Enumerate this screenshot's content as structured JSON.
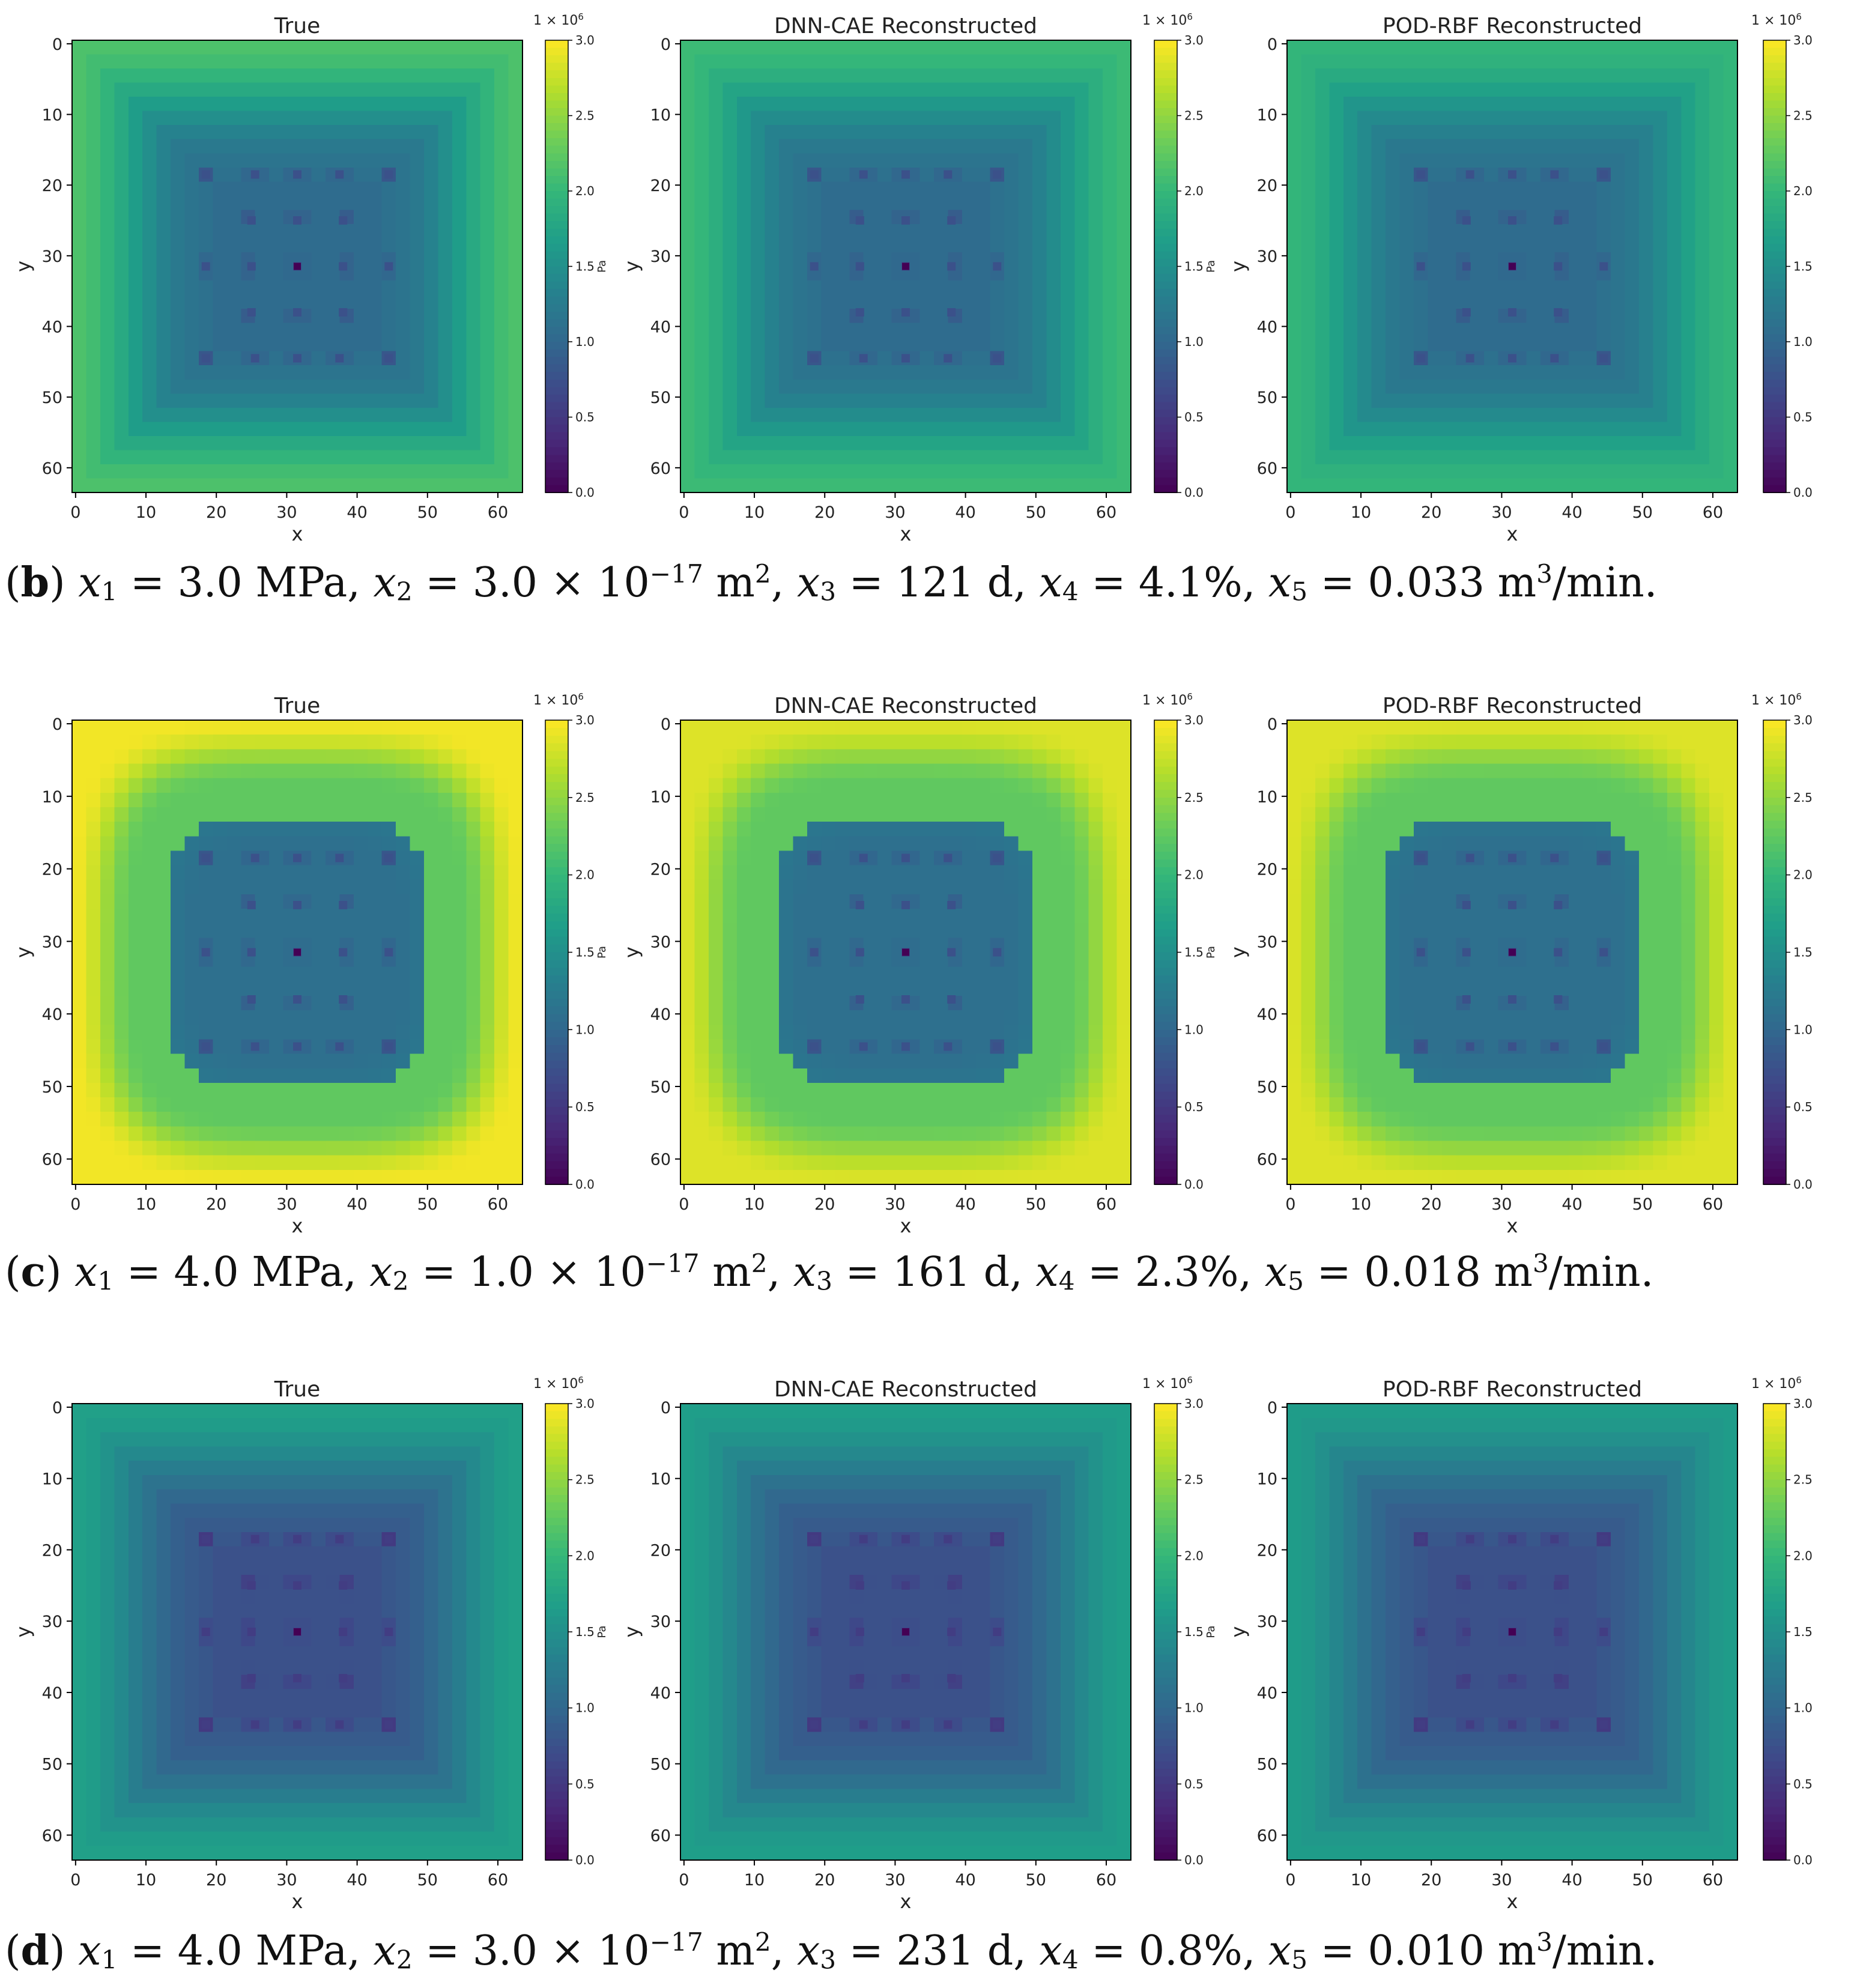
{
  "colormap": [
    "#440154",
    "#482878",
    "#3e4989",
    "#31688e",
    "#26828e",
    "#1f9e89",
    "#35b779",
    "#6ece58",
    "#b5de2b",
    "#fde725"
  ],
  "chart_data": [
    {
      "row": "b",
      "caption": {
        "label": "b",
        "x1": "3.0 MPa",
        "x2_mant": "3.0 × 10",
        "x2_exp": "−17",
        "x3": "121 d",
        "x4": "4.1%",
        "x5": "0.033 m"
      },
      "panels": [
        {
          "title": "True",
          "type": "heatmap",
          "xlabel": "x",
          "ylabel": "y",
          "bg": 2.15,
          "min_pattern": "true",
          "cb_unit": "Pa"
        },
        {
          "title": "DNN-CAE Reconstructed",
          "type": "heatmap",
          "xlabel": "x",
          "ylabel": "y",
          "bg": 2.05,
          "cb_unit": "Pa"
        },
        {
          "title": "POD-RBF Reconstructed",
          "type": "heatmap",
          "xlabel": "x",
          "ylabel": "y",
          "bg": 1.98,
          "cb_unit": ""
        }
      ]
    },
    {
      "row": "c",
      "caption": {
        "label": "c",
        "x1": "4.0 MPa",
        "x2_mant": "1.0 × 10",
        "x2_exp": "−17",
        "x3": "161 d",
        "x4": "2.3%",
        "x5": "0.018 m"
      },
      "panels": [
        {
          "title": "True",
          "type": "heatmap",
          "xlabel": "x",
          "ylabel": "y",
          "bg": 2.95,
          "cb_unit": "Pa"
        },
        {
          "title": "DNN-CAE Reconstructed",
          "type": "heatmap",
          "xlabel": "x",
          "ylabel": "y",
          "bg": 2.85,
          "cb_unit": "Pa"
        },
        {
          "title": "POD-RBF Reconstructed",
          "type": "heatmap",
          "xlabel": "x",
          "ylabel": "y",
          "bg": 2.85,
          "cb_unit": ""
        }
      ]
    },
    {
      "row": "d",
      "caption": {
        "label": "d",
        "x1": "4.0 MPa",
        "x2_mant": "3.0 × 10",
        "x2_exp": "−17",
        "x3": "231 d",
        "x4": "0.8%",
        "x5": "0.010 m"
      },
      "panels": [
        {
          "title": "True",
          "type": "heatmap",
          "xlabel": "x",
          "ylabel": "y",
          "bg": 1.7,
          "cb_unit": "Pa"
        },
        {
          "title": "DNN-CAE Reconstructed",
          "type": "heatmap",
          "xlabel": "x",
          "ylabel": "y",
          "bg": 1.68,
          "cb_unit": "Pa"
        },
        {
          "title": "POD-RBF Reconstructed",
          "type": "heatmap",
          "xlabel": "x",
          "ylabel": "y",
          "bg": 1.65,
          "cb_unit": ""
        }
      ]
    }
  ],
  "axes": {
    "xticks": [
      "0",
      "10",
      "20",
      "30",
      "40",
      "50",
      "60"
    ],
    "yticks": [
      "0",
      "10",
      "20",
      "30",
      "40",
      "50",
      "60"
    ],
    "xlim": [
      0,
      64
    ],
    "ylim": [
      64,
      0
    ]
  },
  "colorbar": {
    "ticks": [
      "0.0",
      "0.5",
      "1.0",
      "1.5",
      "2.0",
      "2.5",
      "3.0"
    ],
    "range": [
      0,
      3
    ],
    "multiplier": "1 × 10",
    "multiplier_exp": "6"
  },
  "caption_common": {
    "eq": " = ",
    "x5_unit_tail": "/min."
  }
}
